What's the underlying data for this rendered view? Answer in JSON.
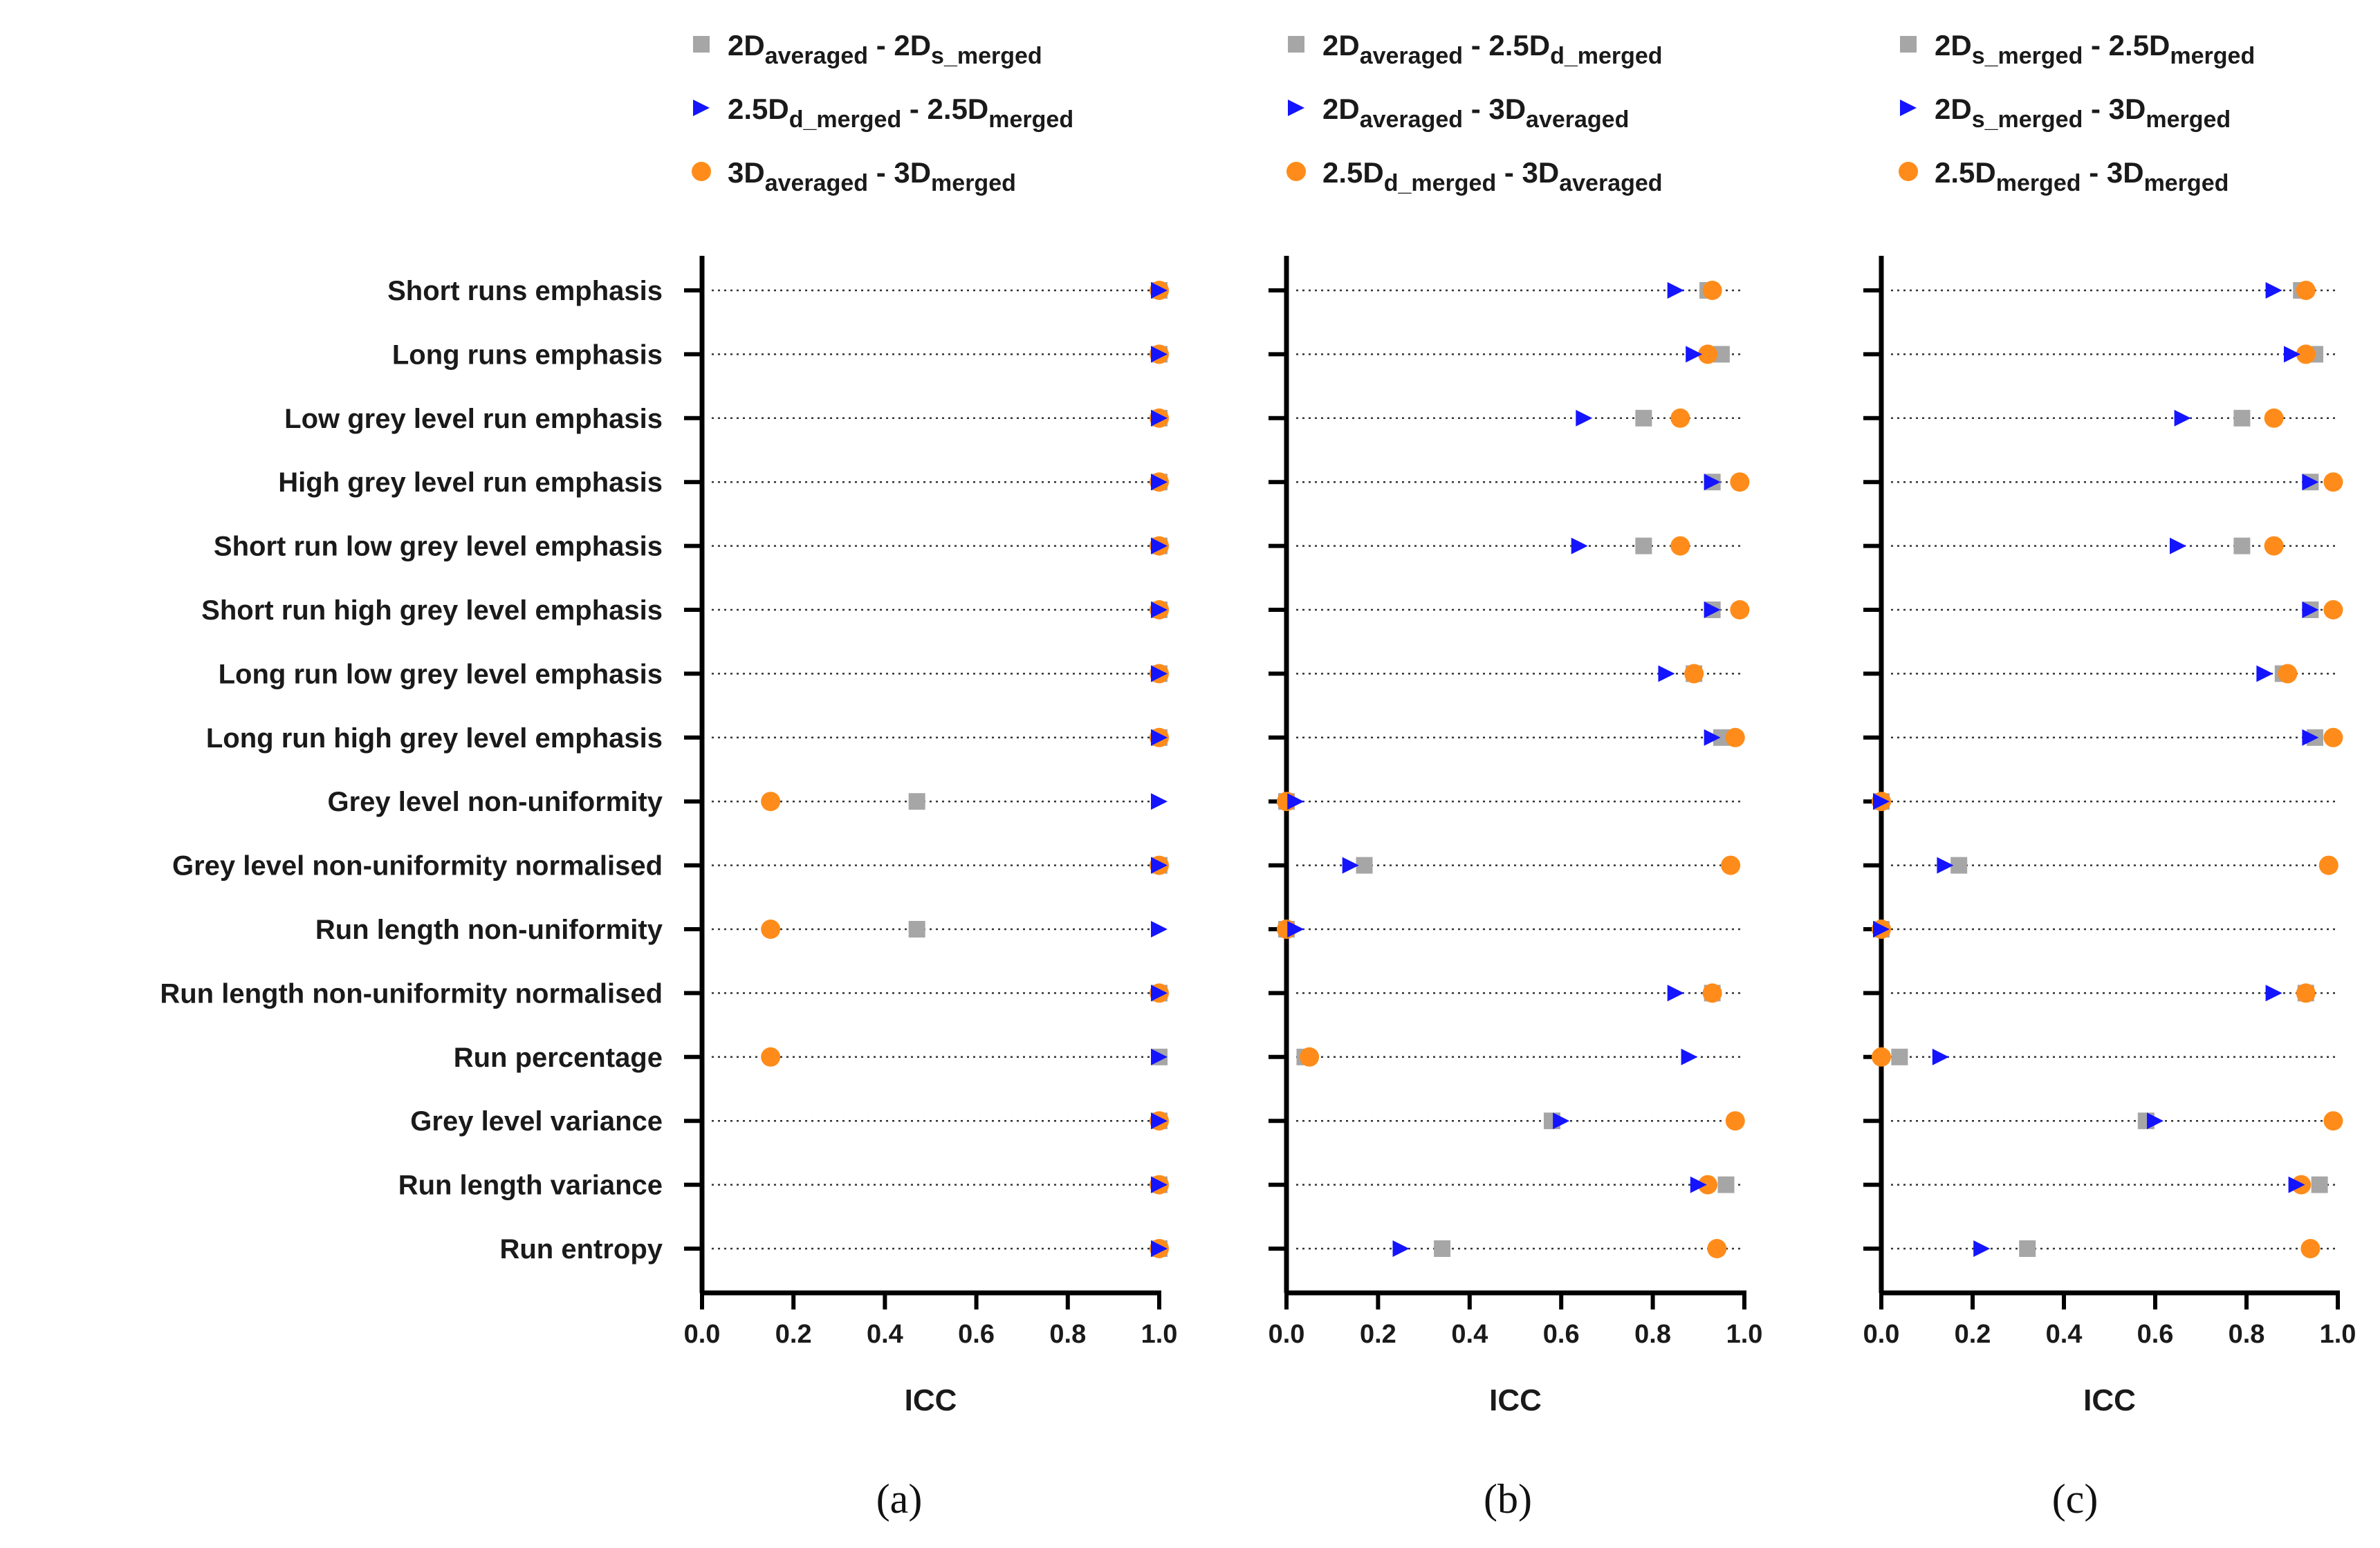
{
  "chart_data": {
    "type": "scatter",
    "features": [
      "Short runs emphasis",
      "Long runs emphasis",
      "Low grey level run emphasis",
      "High grey level run emphasis",
      "Short run low grey level emphasis",
      "Short run high grey level emphasis",
      "Long run low grey level emphasis",
      "Long run high grey level emphasis",
      "Grey level non-uniformity",
      "Grey level non-uniformity normalised",
      "Run length non-uniformity",
      "Run length non-uniformity normalised",
      "Run percentage",
      "Grey level variance",
      "Run length variance",
      "Run entropy"
    ],
    "xlabel": "ICC",
    "xlim": [
      0.0,
      1.0
    ],
    "xticks": [
      "0.0",
      "0.2",
      "0.4",
      "0.6",
      "0.8",
      "1.0"
    ],
    "panels": [
      {
        "label": "(a)",
        "series": [
          {
            "marker": "square",
            "color": "#a6a6a6",
            "legend": [
              {
                "t": "2D"
              },
              {
                "t": "averaged",
                "sub": true
              },
              {
                "t": " - 2D"
              },
              {
                "t": "s_merged",
                "sub": true
              }
            ],
            "values": [
              1.0,
              1.0,
              1.0,
              1.0,
              1.0,
              1.0,
              1.0,
              1.0,
              0.47,
              1.0,
              0.47,
              1.0,
              1.0,
              1.0,
              1.0,
              1.0
            ]
          },
          {
            "marker": "triangle",
            "color": "#1414ff",
            "legend": [
              {
                "t": "2.5D"
              },
              {
                "t": "d_merged",
                "sub": true
              },
              {
                "t": " - 2.5D"
              },
              {
                "t": "merged",
                "sub": true
              }
            ],
            "values": [
              1.0,
              1.0,
              1.0,
              1.0,
              1.0,
              1.0,
              1.0,
              1.0,
              1.0,
              1.0,
              1.0,
              1.0,
              1.0,
              1.0,
              1.0,
              1.0
            ]
          },
          {
            "marker": "circle",
            "color": "#ff8c1a",
            "legend": [
              {
                "t": "3D"
              },
              {
                "t": "averaged",
                "sub": true
              },
              {
                "t": " - 3D"
              },
              {
                "t": "merged",
                "sub": true
              }
            ],
            "values": [
              1.0,
              1.0,
              1.0,
              1.0,
              1.0,
              1.0,
              1.0,
              1.0,
              0.15,
              1.0,
              0.15,
              1.0,
              0.15,
              1.0,
              1.0,
              1.0
            ]
          }
        ]
      },
      {
        "label": "(b)",
        "series": [
          {
            "marker": "square",
            "color": "#a6a6a6",
            "legend": [
              {
                "t": "2D"
              },
              {
                "t": "averaged",
                "sub": true
              },
              {
                "t": " - 2.5D"
              },
              {
                "t": "d_merged",
                "sub": true
              }
            ],
            "values": [
              0.92,
              0.95,
              0.78,
              0.93,
              0.78,
              0.93,
              0.89,
              0.95,
              0.0,
              0.17,
              0.0,
              0.93,
              0.04,
              0.58,
              0.96,
              0.34
            ]
          },
          {
            "marker": "triangle",
            "color": "#1414ff",
            "legend": [
              {
                "t": "2D"
              },
              {
                "t": "averaged",
                "sub": true
              },
              {
                "t": " - 3D"
              },
              {
                "t": "averaged",
                "sub": true
              }
            ],
            "values": [
              0.85,
              0.89,
              0.65,
              0.93,
              0.64,
              0.93,
              0.83,
              0.93,
              0.02,
              0.14,
              0.02,
              0.85,
              0.88,
              0.6,
              0.9,
              0.25
            ]
          },
          {
            "marker": "circle",
            "color": "#ff8c1a",
            "legend": [
              {
                "t": "2.5D"
              },
              {
                "t": "d_merged",
                "sub": true
              },
              {
                "t": " - 3D"
              },
              {
                "t": "averaged",
                "sub": true
              }
            ],
            "values": [
              0.93,
              0.92,
              0.86,
              0.99,
              0.86,
              0.99,
              0.89,
              0.98,
              0.0,
              0.97,
              0.0,
              0.93,
              0.05,
              0.98,
              0.92,
              0.94
            ]
          }
        ]
      },
      {
        "label": "(c)",
        "series": [
          {
            "marker": "square",
            "color": "#a6a6a6",
            "legend": [
              {
                "t": "2D"
              },
              {
                "t": "s_merged",
                "sub": true
              },
              {
                "t": " - 2.5D"
              },
              {
                "t": "merged",
                "sub": true
              }
            ],
            "values": [
              0.92,
              0.95,
              0.79,
              0.94,
              0.79,
              0.94,
              0.88,
              0.95,
              0.0,
              0.17,
              0.0,
              0.93,
              0.04,
              0.58,
              0.96,
              0.32
            ]
          },
          {
            "marker": "triangle",
            "color": "#1414ff",
            "legend": [
              {
                "t": "2D"
              },
              {
                "t": "s_merged",
                "sub": true
              },
              {
                "t": " - 3D"
              },
              {
                "t": "merged",
                "sub": true
              }
            ],
            "values": [
              0.86,
              0.9,
              0.66,
              0.94,
              0.65,
              0.94,
              0.84,
              0.94,
              0.0,
              0.14,
              0.0,
              0.86,
              0.13,
              0.6,
              0.91,
              0.22
            ]
          },
          {
            "marker": "circle",
            "color": "#ff8c1a",
            "legend": [
              {
                "t": "2.5D"
              },
              {
                "t": "merged",
                "sub": true
              },
              {
                "t": " - 3D"
              },
              {
                "t": "merged",
                "sub": true
              }
            ],
            "values": [
              0.93,
              0.93,
              0.86,
              0.99,
              0.86,
              0.99,
              0.89,
              0.99,
              0.0,
              0.98,
              0.0,
              0.93,
              0.0,
              0.99,
              0.92,
              0.94
            ]
          }
        ]
      }
    ]
  }
}
